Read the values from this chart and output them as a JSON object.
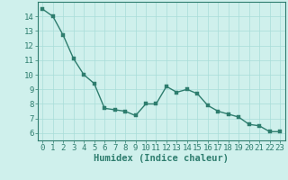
{
  "x": [
    0,
    1,
    2,
    3,
    4,
    5,
    6,
    7,
    8,
    9,
    10,
    11,
    12,
    13,
    14,
    15,
    16,
    17,
    18,
    19,
    20,
    21,
    22,
    23
  ],
  "y": [
    14.5,
    14.0,
    12.7,
    11.1,
    10.0,
    9.4,
    7.7,
    7.6,
    7.5,
    7.2,
    8.0,
    8.0,
    9.2,
    8.8,
    9.0,
    8.7,
    7.9,
    7.5,
    7.3,
    7.1,
    6.6,
    6.5,
    6.1,
    6.1
  ],
  "line_color": "#2e7d6e",
  "marker_color": "#2e7d6e",
  "bg_color": "#cff0ec",
  "grid_color": "#a8ddd8",
  "xlabel": "Humidex (Indice chaleur)",
  "ylim": [
    5.5,
    15.0
  ],
  "xlim": [
    -0.5,
    23.5
  ],
  "yticks": [
    6,
    7,
    8,
    9,
    10,
    11,
    12,
    13,
    14
  ],
  "xticks": [
    0,
    1,
    2,
    3,
    4,
    5,
    6,
    7,
    8,
    9,
    10,
    11,
    12,
    13,
    14,
    15,
    16,
    17,
    18,
    19,
    20,
    21,
    22,
    23
  ],
  "tick_labelsize": 6.5,
  "xlabel_fontsize": 7.5,
  "linewidth": 1.0,
  "markersize": 2.5
}
